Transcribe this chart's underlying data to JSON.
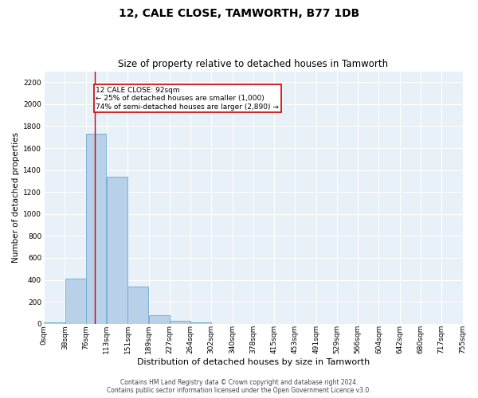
{
  "title": "12, CALE CLOSE, TAMWORTH, B77 1DB",
  "subtitle": "Size of property relative to detached houses in Tamworth",
  "xlabel": "Distribution of detached houses by size in Tamworth",
  "ylabel": "Number of detached properties",
  "bin_edges": [
    0,
    38,
    76,
    113,
    151,
    189,
    227,
    264,
    302,
    340,
    378,
    415,
    453,
    491,
    529,
    566,
    604,
    642,
    680,
    717,
    755
  ],
  "bar_heights": [
    15,
    410,
    1730,
    1340,
    340,
    75,
    30,
    15,
    0,
    0,
    0,
    0,
    0,
    0,
    0,
    0,
    0,
    0,
    0,
    0
  ],
  "bar_color": "#b8d0e8",
  "bar_edge_color": "#6aaad4",
  "fig_bg_color": "#ffffff",
  "axes_bg_color": "#e8f0f8",
  "grid_color": "#ffffff",
  "red_line_x": 92,
  "annotation_text": "12 CALE CLOSE: 92sqm\n← 25% of detached houses are smaller (1,000)\n74% of semi-detached houses are larger (2,890) →",
  "annotation_box_facecolor": "#ffffff",
  "annotation_box_edgecolor": "#cc0000",
  "ylim": [
    0,
    2300
  ],
  "yticks": [
    0,
    200,
    400,
    600,
    800,
    1000,
    1200,
    1400,
    1600,
    1800,
    2000,
    2200
  ],
  "tick_labels": [
    "0sqm",
    "38sqm",
    "76sqm",
    "113sqm",
    "151sqm",
    "189sqm",
    "227sqm",
    "264sqm",
    "302sqm",
    "340sqm",
    "378sqm",
    "415sqm",
    "453sqm",
    "491sqm",
    "529sqm",
    "566sqm",
    "604sqm",
    "642sqm",
    "680sqm",
    "717sqm",
    "755sqm"
  ],
  "footer_line1": "Contains HM Land Registry data © Crown copyright and database right 2024.",
  "footer_line2": "Contains public sector information licensed under the Open Government Licence v3.0.",
  "title_fontsize": 10,
  "subtitle_fontsize": 8.5,
  "ylabel_fontsize": 7.5,
  "xlabel_fontsize": 8,
  "tick_fontsize": 6.5,
  "annotation_fontsize": 6.5,
  "footer_fontsize": 5.5
}
